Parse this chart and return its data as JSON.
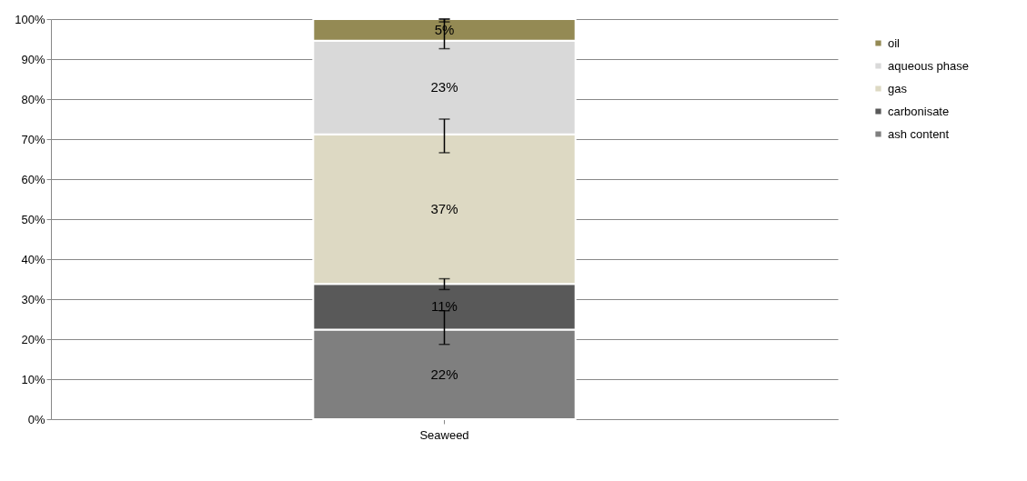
{
  "chart_data": {
    "type": "bar",
    "stacked": true,
    "categories": [
      "Seaweed"
    ],
    "series": [
      {
        "name": "ash content",
        "color": "#7f7f7f",
        "values": [
          22.4
        ],
        "errors": [
          [
            18.7,
            27.1
          ]
        ],
        "value_labels": [
          "22%"
        ]
      },
      {
        "name": "carbonisate",
        "color": "#595959",
        "values": [
          11.4
        ],
        "errors": [
          [
            32.4,
            35.1
          ]
        ],
        "value_labels": [
          "11%"
        ]
      },
      {
        "name": "gas",
        "color": "#ddd9c3",
        "values": [
          37.4
        ],
        "errors": [
          [
            66.6,
            75.0
          ]
        ],
        "value_labels": [
          "37%"
        ]
      },
      {
        "name": "aqueous phase",
        "color": "#d9d9d9",
        "values": [
          23.4
        ],
        "errors": [
          [
            92.6,
            100
          ]
        ],
        "value_labels": [
          "23%"
        ]
      },
      {
        "name": "oil",
        "color": "#948a54",
        "values": [
          5.4
        ],
        "errors": [
          [
            99.3,
            100
          ]
        ],
        "value_labels": [
          "5%"
        ]
      }
    ],
    "ylim": [
      0,
      100
    ],
    "yticks": [
      {
        "value": 0,
        "label": "0%"
      },
      {
        "value": 10,
        "label": "10%"
      },
      {
        "value": 20,
        "label": "20%"
      },
      {
        "value": 30,
        "label": "30%"
      },
      {
        "value": 40,
        "label": "40%"
      },
      {
        "value": 50,
        "label": "50%"
      },
      {
        "value": 60,
        "label": "60%"
      },
      {
        "value": 70,
        "label": "70%"
      },
      {
        "value": 80,
        "label": "80%"
      },
      {
        "value": 90,
        "label": "90%"
      },
      {
        "value": 100,
        "label": "100%"
      }
    ],
    "grid": "y",
    "legend": "right"
  }
}
